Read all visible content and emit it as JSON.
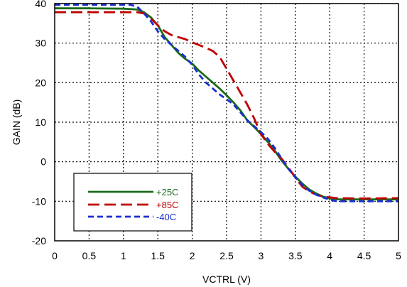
{
  "chart_data": {
    "type": "line",
    "title": "",
    "xlabel": "VCTRL (V)",
    "ylabel": "GAIN (dB)",
    "xlim": [
      0,
      5
    ],
    "ylim": [
      -20,
      40
    ],
    "x_ticks": [
      0,
      0.5,
      1,
      1.5,
      2,
      2.5,
      3,
      3.5,
      4,
      4.5,
      5
    ],
    "x_tick_labels": [
      "0",
      "0.5",
      "1",
      "1.5",
      "2",
      "2.5",
      "3",
      "3.5",
      "4",
      "4.5",
      "5"
    ],
    "y_ticks": [
      -20,
      -10,
      0,
      10,
      20,
      30,
      40
    ],
    "y_tick_labels": [
      "-20",
      "-10",
      "0",
      "10",
      "20",
      "30",
      "40"
    ],
    "grid": true,
    "legend_position": "bottom-left",
    "series": [
      {
        "name": "+25C",
        "color": "#1a6b1a",
        "style": "solid",
        "points": [
          [
            0,
            38.8
          ],
          [
            0.5,
            38.8
          ],
          [
            1.0,
            38.7
          ],
          [
            1.2,
            38.5
          ],
          [
            1.3,
            37.8
          ],
          [
            1.4,
            36.5
          ],
          [
            1.5,
            34.5
          ],
          [
            1.6,
            31.5
          ],
          [
            1.7,
            29.5
          ],
          [
            1.8,
            27.5
          ],
          [
            1.9,
            26.0
          ],
          [
            2.0,
            24.8
          ],
          [
            2.1,
            23.0
          ],
          [
            2.2,
            21.5
          ],
          [
            2.3,
            20.0
          ],
          [
            2.4,
            18.5
          ],
          [
            2.5,
            16.8
          ],
          [
            2.6,
            15.0
          ],
          [
            2.7,
            13.0
          ],
          [
            2.8,
            10.5
          ],
          [
            2.9,
            8.8
          ],
          [
            3.0,
            7.0
          ],
          [
            3.1,
            5.0
          ],
          [
            3.2,
            2.8
          ],
          [
            3.3,
            0.3
          ],
          [
            3.4,
            -1.8
          ],
          [
            3.5,
            -3.8
          ],
          [
            3.6,
            -5.5
          ],
          [
            3.7,
            -7.0
          ],
          [
            3.8,
            -8.0
          ],
          [
            3.9,
            -8.8
          ],
          [
            4.0,
            -9.3
          ],
          [
            4.1,
            -9.5
          ],
          [
            4.5,
            -9.5
          ],
          [
            5.0,
            -9.5
          ]
        ]
      },
      {
        "name": "+85C",
        "color": "#c00000",
        "style": "long-dash",
        "points": [
          [
            0,
            37.8
          ],
          [
            0.5,
            37.8
          ],
          [
            1.0,
            37.8
          ],
          [
            1.2,
            37.8
          ],
          [
            1.3,
            37.5
          ],
          [
            1.4,
            36.2
          ],
          [
            1.5,
            34.5
          ],
          [
            1.6,
            33.0
          ],
          [
            1.7,
            32.0
          ],
          [
            1.8,
            31.5
          ],
          [
            1.9,
            31.0
          ],
          [
            2.0,
            30.2
          ],
          [
            2.1,
            29.5
          ],
          [
            2.2,
            28.8
          ],
          [
            2.3,
            28.0
          ],
          [
            2.4,
            26.5
          ],
          [
            2.5,
            23.5
          ],
          [
            2.6,
            20.5
          ],
          [
            2.7,
            17.5
          ],
          [
            2.8,
            14.5
          ],
          [
            2.9,
            11.0
          ],
          [
            3.0,
            7.0
          ],
          [
            3.1,
            4.5
          ],
          [
            3.2,
            2.5
          ],
          [
            3.3,
            0.8
          ],
          [
            3.4,
            -1.5
          ],
          [
            3.5,
            -4.0
          ],
          [
            3.6,
            -6.3
          ],
          [
            3.7,
            -7.5
          ],
          [
            3.8,
            -8.3
          ],
          [
            3.9,
            -8.8
          ],
          [
            4.0,
            -9.0
          ],
          [
            4.1,
            -9.2
          ],
          [
            4.5,
            -9.3
          ],
          [
            5.0,
            -9.2
          ]
        ]
      },
      {
        "name": "-40C",
        "color": "#1a2fd0",
        "style": "short-dash",
        "points": [
          [
            0,
            39.7
          ],
          [
            0.5,
            39.7
          ],
          [
            1.0,
            39.7
          ],
          [
            1.1,
            39.7
          ],
          [
            1.2,
            39.2
          ],
          [
            1.3,
            37.5
          ],
          [
            1.4,
            35.5
          ],
          [
            1.5,
            33.0
          ],
          [
            1.6,
            31.0
          ],
          [
            1.7,
            29.5
          ],
          [
            1.8,
            28.0
          ],
          [
            1.9,
            26.5
          ],
          [
            2.0,
            24.5
          ],
          [
            2.1,
            22.0
          ],
          [
            2.2,
            20.0
          ],
          [
            2.3,
            18.5
          ],
          [
            2.4,
            17.0
          ],
          [
            2.5,
            15.8
          ],
          [
            2.6,
            14.5
          ],
          [
            2.7,
            12.5
          ],
          [
            2.8,
            10.5
          ],
          [
            2.9,
            9.0
          ],
          [
            3.0,
            7.5
          ],
          [
            3.1,
            5.8
          ],
          [
            3.2,
            3.5
          ],
          [
            3.3,
            0.8
          ],
          [
            3.4,
            -1.8
          ],
          [
            3.5,
            -4.0
          ],
          [
            3.6,
            -5.8
          ],
          [
            3.7,
            -7.3
          ],
          [
            3.8,
            -8.3
          ],
          [
            3.9,
            -9.0
          ],
          [
            4.0,
            -9.6
          ],
          [
            4.1,
            -10.0
          ],
          [
            4.5,
            -10.0
          ],
          [
            5.0,
            -10.0
          ]
        ]
      }
    ]
  }
}
